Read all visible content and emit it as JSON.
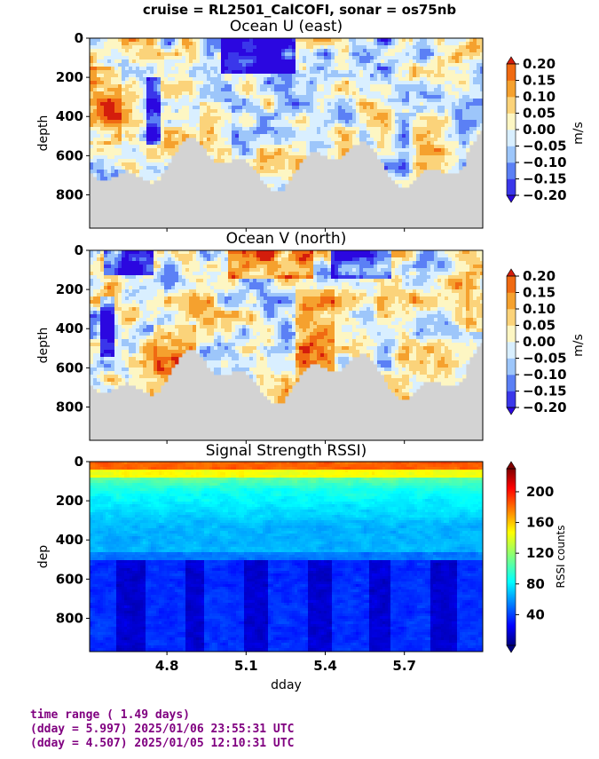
{
  "suptitle": "cruise = RL2501_CalCOFI,  sonar = os75nb",
  "footer": {
    "line1": "time range ( 1.49 days)",
    "line2": "(dday = 5.997) 2025/01/06 23:55:31 UTC",
    "line3": "(dday = 4.507) 2025/01/05 12:10:31 UTC"
  },
  "chart_data": [
    {
      "type": "heatmap",
      "title": "Ocean U (east)",
      "ylabel": "depth",
      "xlabel": "",
      "x_range": [
        4.507,
        5.997
      ],
      "y_range": [
        970,
        0
      ],
      "y_ticks": [
        "0",
        "200",
        "400",
        "600",
        "800"
      ],
      "colorbar": {
        "label": "m/s",
        "range": [
          -0.2,
          0.2
        ],
        "ticks": [
          "0.20",
          "0.15",
          "0.10",
          "0.05",
          "0.00",
          "−0.05",
          "−0.10",
          "−0.15",
          "−0.20"
        ]
      },
      "colors": {
        "levels": [
          "#2b07e0",
          "#3a37ea",
          "#5b80f5",
          "#9dc6fa",
          "#d9efff",
          "#fdf6c3",
          "#fbd37a",
          "#f5a12e",
          "#f06a12",
          "#d41d0c"
        ],
        "no_data": "#d3d3d3"
      }
    },
    {
      "type": "heatmap",
      "title": "Ocean V (north)",
      "ylabel": "depth",
      "xlabel": "",
      "x_range": [
        4.507,
        5.997
      ],
      "y_range": [
        970,
        0
      ],
      "y_ticks": [
        "0",
        "200",
        "400",
        "600",
        "800"
      ],
      "colorbar": {
        "label": "m/s",
        "range": [
          -0.2,
          0.2
        ],
        "ticks": [
          "0.20",
          "0.15",
          "0.10",
          "0.05",
          "0.00",
          "−0.05",
          "−0.10",
          "−0.15",
          "−0.20"
        ]
      },
      "colors": {
        "levels": [
          "#2b07e0",
          "#3a37ea",
          "#5b80f5",
          "#9dc6fa",
          "#d9efff",
          "#fdf6c3",
          "#fbd37a",
          "#f5a12e",
          "#f06a12",
          "#d41d0c"
        ],
        "no_data": "#d3d3d3"
      }
    },
    {
      "type": "heatmap",
      "title": "Signal Strength RSSI)",
      "ylabel": "dep",
      "xlabel": "dday",
      "x_range": [
        4.507,
        5.997
      ],
      "y_range": [
        970,
        0
      ],
      "x_ticks": [
        {
          "value": 4.8,
          "label": "4.8"
        },
        {
          "value": 5.1,
          "label": "5.1"
        },
        {
          "value": 5.4,
          "label": "5.4"
        },
        {
          "value": 5.7,
          "label": "5.7"
        }
      ],
      "y_ticks": [
        "0",
        "200",
        "400",
        "600",
        "800"
      ],
      "colorbar": {
        "label": "RSSI counts",
        "range": [
          0,
          230
        ],
        "ticks": [
          "200",
          "160",
          "120",
          "80",
          "40"
        ]
      },
      "colors": {
        "jet": [
          "#00007f",
          "#0000ff",
          "#007fff",
          "#00ffff",
          "#7fff7f",
          "#ffff00",
          "#ff7f00",
          "#ff0000",
          "#7f0000"
        ]
      }
    }
  ]
}
